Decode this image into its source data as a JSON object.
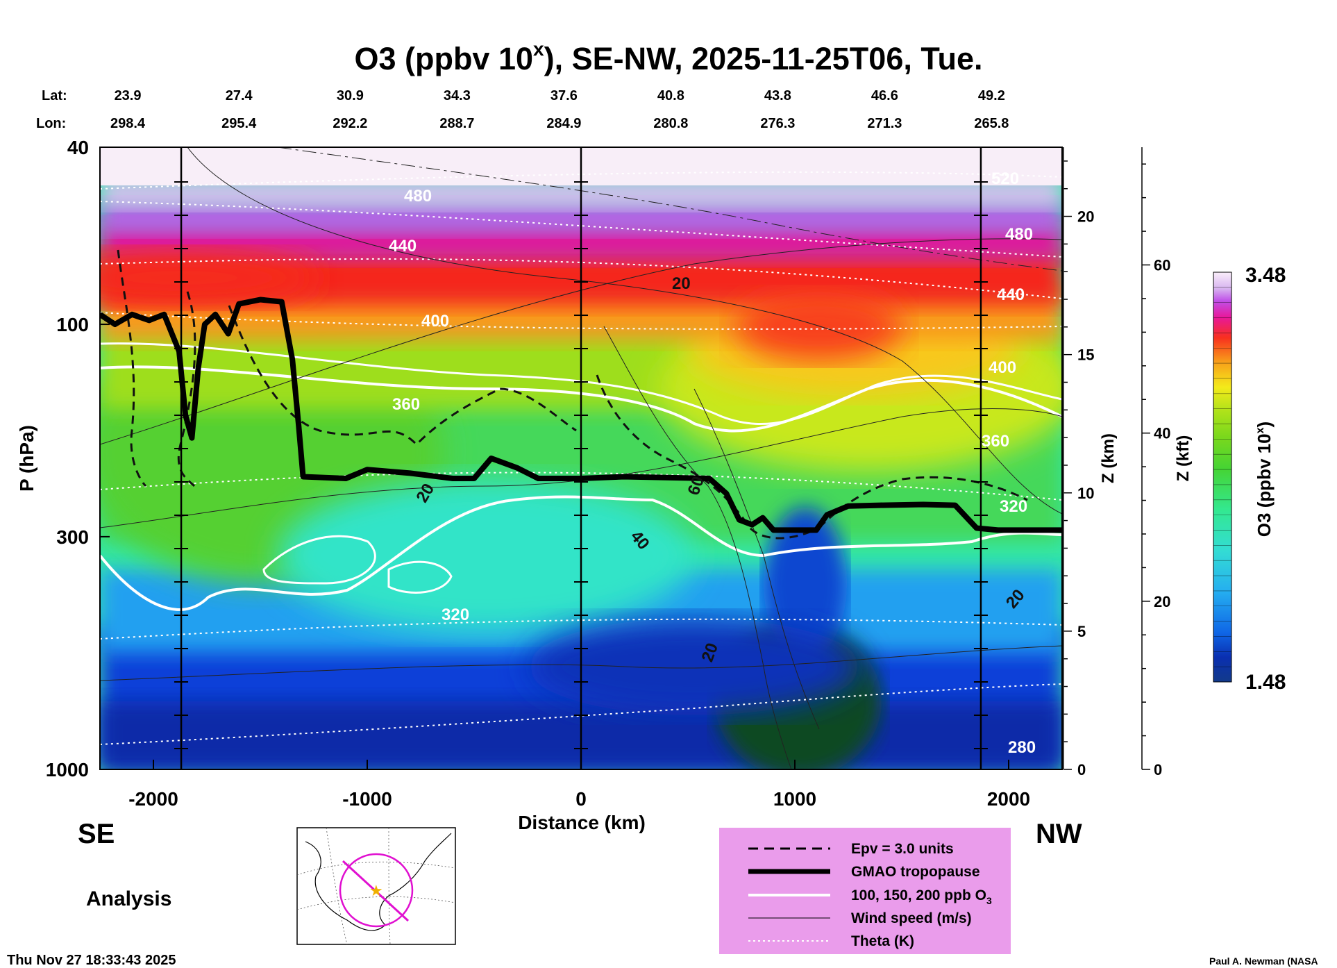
{
  "chart_data": {
    "type": "heatmap",
    "title": "O3 (ppbv 10",
    "title_sup": "x",
    "title_rest": "), SE-NW, 2025-11-25T06, Tue.",
    "lat_label": "Lat:",
    "lon_label": "Lon:",
    "lat_values": [
      "23.9",
      "27.4",
      "30.9",
      "34.3",
      "37.6",
      "40.8",
      "43.8",
      "46.6",
      "49.2"
    ],
    "lon_values": [
      "298.4",
      "295.4",
      "292.2",
      "288.7",
      "284.9",
      "280.8",
      "276.3",
      "271.3",
      "265.8"
    ],
    "station_distances_km": [
      -2120,
      -1600,
      -1080,
      -580,
      -80,
      420,
      920,
      1420,
      1920
    ],
    "xlabel": "Distance (km)",
    "ylabel": "P (hPa)",
    "xlim": [
      -2250,
      2250
    ],
    "ylim": [
      1000,
      40
    ],
    "x_ticks": [
      -2000,
      -1000,
      0,
      1000,
      2000
    ],
    "x_tick_labels": [
      "-2000",
      "-1000",
      "0",
      "1000",
      "2000"
    ],
    "y_ticks": [
      1000,
      300,
      100,
      40
    ],
    "y_tick_labels": [
      "1000",
      "300",
      "100",
      "40"
    ],
    "z_km_label": "Z (km)",
    "z_km_ticks": [
      0,
      5,
      10,
      15,
      20
    ],
    "z_km_labels": [
      "0",
      "5",
      "10",
      "15",
      "20"
    ],
    "z_kft_label": "Z (kft)",
    "z_kft_ticks": [
      0,
      20,
      40,
      60
    ],
    "z_kft_labels": [
      "0",
      "20",
      "40",
      "60"
    ],
    "vertical_markers_km": [
      -1870,
      0,
      1870
    ],
    "left_end": "SE",
    "right_end": "NW",
    "colorbar": {
      "label": "O3 (ppbv 10",
      "label_sup": "x",
      "label_end": ")",
      "max_label": "3.48",
      "min_label": "1.48",
      "min": 1.48,
      "max": 3.48,
      "colors": [
        "#0a0a5a",
        "#123a12",
        "#0b4a24",
        "#0033cc",
        "#0a55ee",
        "#1a86f0",
        "#2ab6f2",
        "#33dcec",
        "#33ecc0",
        "#33e88c",
        "#33dd44",
        "#55d422",
        "#8cdc1a",
        "#bce81a",
        "#f0e81a",
        "#f8c01a",
        "#f89a1a",
        "#f8661a",
        "#f81e1e",
        "#e8105a",
        "#e81aa8",
        "#d048e0",
        "#b068ea",
        "#c898ea",
        "#dab8f0",
        "#e8d0f4",
        "#f6e8f8"
      ]
    },
    "contour_labels": {
      "theta": [
        "480",
        "440",
        "400",
        "360",
        "320",
        "280",
        "520",
        "480",
        "440",
        "400",
        "360",
        "320"
      ],
      "wind": [
        "20",
        "20",
        "60",
        "40",
        "20",
        "20"
      ]
    },
    "tropopause_km_hpa": [
      [
        -2250,
        95
      ],
      [
        -2180,
        100
      ],
      [
        -2100,
        95
      ],
      [
        -2020,
        98
      ],
      [
        -1950,
        95
      ],
      [
        -1880,
        115
      ],
      [
        -1850,
        160
      ],
      [
        -1820,
        180
      ],
      [
        -1790,
        125
      ],
      [
        -1760,
        100
      ],
      [
        -1710,
        95
      ],
      [
        -1650,
        105
      ],
      [
        -1600,
        90
      ],
      [
        -1500,
        88
      ],
      [
        -1400,
        89
      ],
      [
        -1350,
        120
      ],
      [
        -1320,
        170
      ],
      [
        -1300,
        220
      ],
      [
        -1100,
        222
      ],
      [
        -1000,
        212
      ],
      [
        -800,
        216
      ],
      [
        -600,
        222
      ],
      [
        -500,
        222
      ],
      [
        -420,
        200
      ],
      [
        -300,
        210
      ],
      [
        -200,
        222
      ],
      [
        0,
        222
      ],
      [
        200,
        220
      ],
      [
        400,
        221
      ],
      [
        600,
        222
      ],
      [
        680,
        240
      ],
      [
        740,
        275
      ],
      [
        800,
        282
      ],
      [
        850,
        272
      ],
      [
        900,
        290
      ],
      [
        1100,
        290
      ],
      [
        1150,
        268
      ],
      [
        1250,
        256
      ],
      [
        1400,
        255
      ],
      [
        1600,
        254
      ],
      [
        1750,
        255
      ],
      [
        1850,
        287
      ],
      [
        1950,
        290
      ],
      [
        2250,
        290
      ]
    ],
    "legend": {
      "epv": "Epv = 3.0 units",
      "tropopause": "GMAO tropopause",
      "o3": "100, 150, 200 ppb O",
      "o3_sub": "3",
      "wind": "Wind speed (m/s)",
      "theta": "Theta (K)"
    }
  },
  "footer": {
    "mode": "Analysis",
    "timestamp": "Thu Nov 27 18:33:43 2025",
    "credit": "Paul A. Newman (NASA"
  }
}
